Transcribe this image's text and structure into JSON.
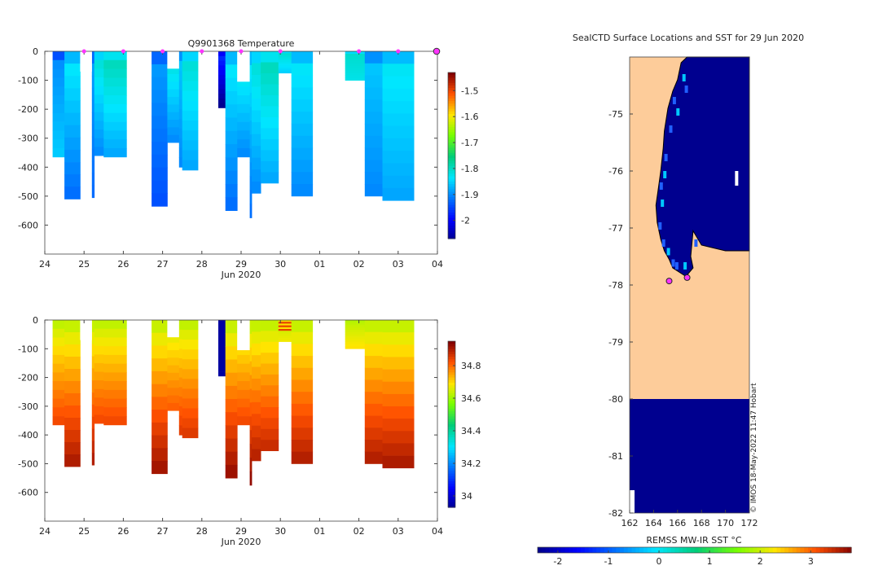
{
  "chart_data": [
    {
      "type": "heatmap",
      "title": "Q9901368  Temperature",
      "xlabel": "Jun 2020",
      "ylabel": "",
      "xticks": [
        "24",
        "25",
        "26",
        "27",
        "28",
        "29",
        "30",
        "01",
        "02",
        "03",
        "04"
      ],
      "yticks": [
        0,
        -100,
        -200,
        -300,
        -400,
        -500,
        -600
      ],
      "ylim": [
        -700,
        0
      ],
      "xlim_days": [
        0,
        10
      ],
      "colorbar": {
        "ticks": [
          -1.5,
          -1.6,
          -1.7,
          -1.8,
          -1.9,
          -2
        ],
        "range": [
          -2.07,
          -1.43
        ]
      },
      "profiles": [
        {
          "t0": 0.2,
          "t1": 0.5,
          "depth": 365,
          "surface": -1.9,
          "deep": -1.85
        },
        {
          "t0": 0.5,
          "t1": 0.9,
          "depth": 510,
          "surface": -1.82,
          "deep": -1.92
        },
        {
          "t0": 1.2,
          "t1": 1.26,
          "depth": 505,
          "surface": -1.88,
          "deep": -1.92
        },
        {
          "t0": 1.26,
          "t1": 1.5,
          "depth": 360,
          "surface": -1.8,
          "deep": -1.9
        },
        {
          "t0": 1.5,
          "t1": 2.08,
          "depth": 365,
          "surface": -1.78,
          "deep": -1.88
        },
        {
          "t0": 2.72,
          "t1": 3.12,
          "depth": 535,
          "surface": -1.88,
          "deep": -1.94
        },
        {
          "t0": 3.12,
          "t1": 3.42,
          "depth": 315,
          "surface": -1.8,
          "deep": -1.9
        },
        {
          "t0": 3.42,
          "t1": 3.5,
          "depth": 400,
          "surface": -1.85,
          "deep": -1.9
        },
        {
          "t0": 3.5,
          "t1": 3.9,
          "depth": 410,
          "surface": -1.8,
          "deep": -1.88
        },
        {
          "t0": 4.42,
          "t1": 4.6,
          "depth": 195,
          "surface": -1.95,
          "deep": -2.08
        },
        {
          "t0": 4.6,
          "t1": 4.9,
          "depth": 550,
          "surface": -1.82,
          "deep": -1.92
        },
        {
          "t0": 4.9,
          "t1": 5.22,
          "depth": 365,
          "surface": -1.8,
          "deep": -1.9
        },
        {
          "t0": 5.22,
          "t1": 5.27,
          "depth": 575,
          "surface": -1.82,
          "deep": -1.92
        },
        {
          "t0": 5.27,
          "t1": 5.5,
          "depth": 490,
          "surface": -1.8,
          "deep": -1.9
        },
        {
          "t0": 5.5,
          "t1": 5.95,
          "depth": 455,
          "surface": -1.78,
          "deep": -1.88
        },
        {
          "t0": 5.95,
          "t1": 6.28,
          "depth": 75,
          "surface": -1.8,
          "deep": -1.85
        },
        {
          "t0": 6.28,
          "t1": 6.82,
          "depth": 500,
          "surface": -1.82,
          "deep": -1.9
        },
        {
          "t0": 7.65,
          "t1": 8.15,
          "depth": 100,
          "surface": -1.8,
          "deep": -1.82
        },
        {
          "t0": 8.15,
          "t1": 8.6,
          "depth": 500,
          "surface": -1.85,
          "deep": -1.9
        },
        {
          "t0": 8.6,
          "t1": 9.4,
          "depth": 515,
          "surface": -1.82,
          "deep": -1.88
        }
      ],
      "voids": [
        {
          "t0": 0.9,
          "t1": 1.2,
          "depth": 70
        },
        {
          "t0": 3.12,
          "t1": 3.42,
          "depth": 60
        },
        {
          "t0": 4.9,
          "t1": 5.22,
          "depth": 105
        },
        {
          "t0": 5.95,
          "t1": 6.28,
          "depth": 0
        }
      ],
      "markers_days": [
        1,
        2,
        3,
        4,
        5,
        6,
        8,
        9,
        10
      ]
    },
    {
      "type": "heatmap",
      "title": "",
      "xlabel": "Jun 2020",
      "xticks": [
        "24",
        "25",
        "26",
        "27",
        "28",
        "29",
        "30",
        "01",
        "02",
        "03",
        "04"
      ],
      "yticks": [
        0,
        -100,
        -200,
        -300,
        -400,
        -500,
        -600
      ],
      "ylim": [
        -700,
        0
      ],
      "colorbar": {
        "ticks": [
          34.8,
          34.6,
          34.4,
          34.2,
          34
        ],
        "range": [
          33.93,
          34.95
        ]
      },
      "depth_dependent": "salinity increases with depth, approx 34.6 at surface to 34.9 at 500 m; low salinity column near 28.4"
    },
    {
      "type": "heatmap",
      "title": "SealCTD Surface Locations and SST for 29 Jun 2020",
      "xlabel": "",
      "ylabel": "",
      "xticks": [
        "162",
        "164",
        "166",
        "168",
        "170",
        "172"
      ],
      "yticks": [
        "-75",
        "-76",
        "-77",
        "-78",
        "-79",
        "-80",
        "-81",
        "-82"
      ],
      "xlim": [
        162,
        172
      ],
      "ylim": [
        -82,
        -74
      ],
      "colorbar": {
        "label": "REMSS MW-IR SST °C",
        "ticks": [
          "-2",
          "-1",
          "0",
          "1",
          "2",
          "3"
        ],
        "range": [
          -2.4,
          3.8
        ]
      },
      "surface_locations": [
        [
          165.3,
          -77.93
        ],
        [
          166.8,
          -77.87
        ]
      ],
      "stamp": "© IMOS 18-May-2022 11:47 Hobart"
    }
  ]
}
